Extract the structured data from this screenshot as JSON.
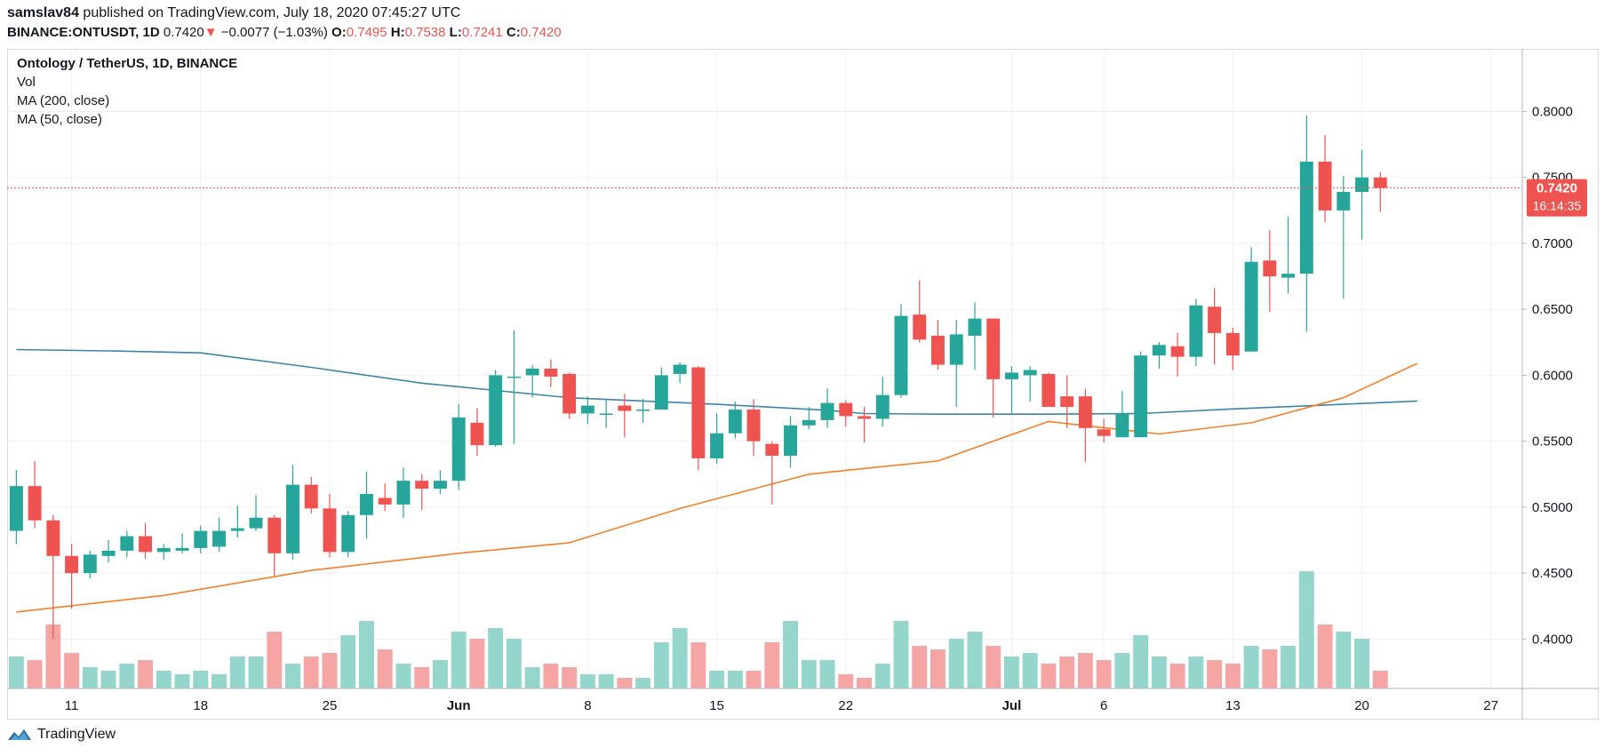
{
  "header": {
    "user": "samslav84",
    "published_text": "published on TradingView.com, July 18, 2020 07:45:27 UTC",
    "symbol": "BINANCE:ONTUSDT, 1D",
    "last_price": "0.7420",
    "change_arrow": "▼",
    "change": "−0.0077 (−1.03%)",
    "o_label": "O:",
    "o_value": "0.7495",
    "h_label": "H:",
    "h_value": "0.7538",
    "l_label": "L:",
    "l_value": "0.7241",
    "c_label": "C:",
    "c_value": "0.7420"
  },
  "legend": {
    "title": "Ontology / TetherUS, 1D, BINANCE",
    "vol": "Vol",
    "ma200": "MA (200, close)",
    "ma50": "MA (50, close)"
  },
  "price_tag": {
    "value": "0.7420",
    "countdown": "16:14:35"
  },
  "footer": {
    "brand": "TradingView"
  },
  "colors": {
    "up": "#26a69a",
    "down": "#ef5350",
    "vol_up": "#94d5cc",
    "vol_down": "#f5a6a4",
    "ma200": "#3d85a8",
    "ma50": "#f57f27",
    "grid": "#eef0f3",
    "axis_text": "#131722"
  },
  "chart_data": {
    "type": "candlestick",
    "title": "Ontology / TetherUS, 1D, BINANCE",
    "y_axis": {
      "range": [
        0.3625,
        0.8475
      ],
      "ticks": [
        "0.4000",
        "0.4500",
        "0.5000",
        "0.5500",
        "0.6000",
        "0.6500",
        "0.7000",
        "0.7500",
        "0.8000"
      ]
    },
    "x_axis": {
      "ticks": [
        {
          "label": "11",
          "index": 3
        },
        {
          "label": "18",
          "index": 10
        },
        {
          "label": "25",
          "index": 17
        },
        {
          "label": "Jun",
          "index": 24
        },
        {
          "label": "8",
          "index": 31
        },
        {
          "label": "15",
          "index": 38
        },
        {
          "label": "22",
          "index": 45
        },
        {
          "label": "Jul",
          "index": 54
        },
        {
          "label": "6",
          "index": 59
        },
        {
          "label": "13",
          "index": 66
        },
        {
          "label": "20",
          "index": 73
        },
        {
          "label": "27",
          "index": 80
        }
      ],
      "index_range": [
        -0.5,
        81.7
      ]
    },
    "volume_range": [
      0,
      0.5
    ],
    "candles": [
      [
        0.482,
        0.528,
        0.472,
        0.516,
        0.09
      ],
      [
        0.516,
        0.535,
        0.484,
        0.49,
        0.08
      ],
      [
        0.49,
        0.494,
        0.4,
        0.463,
        0.18
      ],
      [
        0.463,
        0.472,
        0.423,
        0.45,
        0.1
      ],
      [
        0.45,
        0.467,
        0.446,
        0.464,
        0.06
      ],
      [
        0.463,
        0.475,
        0.458,
        0.467,
        0.05
      ],
      [
        0.467,
        0.482,
        0.462,
        0.478,
        0.07
      ],
      [
        0.478,
        0.488,
        0.461,
        0.466,
        0.08
      ],
      [
        0.466,
        0.472,
        0.46,
        0.469,
        0.05
      ],
      [
        0.467,
        0.48,
        0.465,
        0.469,
        0.04
      ],
      [
        0.469,
        0.486,
        0.465,
        0.482,
        0.05
      ],
      [
        0.47,
        0.492,
        0.466,
        0.482,
        0.04
      ],
      [
        0.482,
        0.501,
        0.477,
        0.484,
        0.09
      ],
      [
        0.484,
        0.509,
        0.482,
        0.492,
        0.09
      ],
      [
        0.492,
        0.494,
        0.448,
        0.465,
        0.16
      ],
      [
        0.465,
        0.532,
        0.46,
        0.517,
        0.07
      ],
      [
        0.517,
        0.523,
        0.495,
        0.499,
        0.09
      ],
      [
        0.499,
        0.51,
        0.462,
        0.466,
        0.1
      ],
      [
        0.466,
        0.497,
        0.462,
        0.494,
        0.15
      ],
      [
        0.494,
        0.527,
        0.476,
        0.51,
        0.19
      ],
      [
        0.507,
        0.518,
        0.497,
        0.502,
        0.11
      ],
      [
        0.502,
        0.53,
        0.492,
        0.52,
        0.07
      ],
      [
        0.52,
        0.525,
        0.498,
        0.514,
        0.06
      ],
      [
        0.514,
        0.528,
        0.51,
        0.52,
        0.08
      ],
      [
        0.52,
        0.578,
        0.513,
        0.568,
        0.16
      ],
      [
        0.564,
        0.575,
        0.539,
        0.547,
        0.14
      ],
      [
        0.547,
        0.604,
        0.546,
        0.6,
        0.17
      ],
      [
        0.599,
        0.634,
        0.548,
        0.599,
        0.14
      ],
      [
        0.6,
        0.608,
        0.583,
        0.605,
        0.06
      ],
      [
        0.605,
        0.612,
        0.591,
        0.599,
        0.07
      ],
      [
        0.601,
        0.602,
        0.567,
        0.571,
        0.06
      ],
      [
        0.571,
        0.584,
        0.563,
        0.577,
        0.04
      ],
      [
        0.571,
        0.581,
        0.56,
        0.571,
        0.04
      ],
      [
        0.577,
        0.586,
        0.553,
        0.573,
        0.03
      ],
      [
        0.573,
        0.582,
        0.564,
        0.574,
        0.03
      ],
      [
        0.574,
        0.606,
        0.574,
        0.6,
        0.13
      ],
      [
        0.601,
        0.61,
        0.594,
        0.608,
        0.17
      ],
      [
        0.606,
        0.607,
        0.528,
        0.537,
        0.13
      ],
      [
        0.537,
        0.571,
        0.533,
        0.556,
        0.05
      ],
      [
        0.556,
        0.58,
        0.552,
        0.574,
        0.05
      ],
      [
        0.574,
        0.582,
        0.539,
        0.55,
        0.05
      ],
      [
        0.548,
        0.55,
        0.502,
        0.539,
        0.13
      ],
      [
        0.539,
        0.569,
        0.53,
        0.562,
        0.19
      ],
      [
        0.562,
        0.576,
        0.559,
        0.566,
        0.08
      ],
      [
        0.566,
        0.59,
        0.56,
        0.579,
        0.08
      ],
      [
        0.579,
        0.581,
        0.561,
        0.569,
        0.04
      ],
      [
        0.569,
        0.576,
        0.549,
        0.567,
        0.03
      ],
      [
        0.567,
        0.599,
        0.561,
        0.585,
        0.07
      ],
      [
        0.585,
        0.654,
        0.583,
        0.645,
        0.19
      ],
      [
        0.646,
        0.672,
        0.625,
        0.627,
        0.12
      ],
      [
        0.63,
        0.642,
        0.604,
        0.608,
        0.11
      ],
      [
        0.608,
        0.642,
        0.576,
        0.631,
        0.14
      ],
      [
        0.63,
        0.655,
        0.604,
        0.643,
        0.16
      ],
      [
        0.643,
        0.643,
        0.568,
        0.597,
        0.12
      ],
      [
        0.597,
        0.607,
        0.57,
        0.602,
        0.09
      ],
      [
        0.6,
        0.607,
        0.58,
        0.604,
        0.1
      ],
      [
        0.601,
        0.602,
        0.576,
        0.576,
        0.07
      ],
      [
        0.584,
        0.6,
        0.56,
        0.576,
        0.09
      ],
      [
        0.584,
        0.59,
        0.534,
        0.56,
        0.1
      ],
      [
        0.559,
        0.567,
        0.549,
        0.554,
        0.08
      ],
      [
        0.553,
        0.588,
        0.554,
        0.571,
        0.1
      ],
      [
        0.553,
        0.618,
        0.557,
        0.615,
        0.15
      ],
      [
        0.615,
        0.625,
        0.605,
        0.623,
        0.09
      ],
      [
        0.622,
        0.632,
        0.599,
        0.614,
        0.07
      ],
      [
        0.614,
        0.658,
        0.607,
        0.653,
        0.09
      ],
      [
        0.652,
        0.666,
        0.608,
        0.632,
        0.08
      ],
      [
        0.632,
        0.636,
        0.604,
        0.615,
        0.07
      ],
      [
        0.618,
        0.697,
        0.618,
        0.686,
        0.12
      ],
      [
        0.687,
        0.71,
        0.648,
        0.675,
        0.11
      ],
      [
        0.674,
        0.72,
        0.662,
        0.677,
        0.12
      ],
      [
        0.677,
        0.797,
        0.633,
        0.762,
        0.33
      ],
      [
        0.762,
        0.782,
        0.716,
        0.725,
        0.18
      ],
      [
        0.725,
        0.751,
        0.658,
        0.739,
        0.16
      ],
      [
        0.739,
        0.771,
        0.703,
        0.75,
        0.14
      ],
      [
        0.75,
        0.754,
        0.724,
        0.742,
        0.05
      ]
    ],
    "candle_fields": [
      "open",
      "high",
      "low",
      "close",
      "volume"
    ],
    "ma200": [
      [
        0,
        0.6195
      ],
      [
        5,
        0.6185
      ],
      [
        10,
        0.617
      ],
      [
        16,
        0.606
      ],
      [
        22,
        0.594
      ],
      [
        30,
        0.583
      ],
      [
        38,
        0.578
      ],
      [
        44,
        0.5735
      ],
      [
        46,
        0.571
      ],
      [
        50,
        0.5705
      ],
      [
        56,
        0.5705
      ],
      [
        61,
        0.571
      ],
      [
        66,
        0.5745
      ],
      [
        72,
        0.578
      ],
      [
        76,
        0.5805
      ]
    ],
    "ma50": [
      [
        0,
        0.4205
      ],
      [
        8,
        0.433
      ],
      [
        16,
        0.452
      ],
      [
        24,
        0.465
      ],
      [
        30,
        0.473
      ],
      [
        36,
        0.499
      ],
      [
        43,
        0.525
      ],
      [
        50,
        0.535
      ],
      [
        56,
        0.565
      ],
      [
        62,
        0.5555
      ],
      [
        67,
        0.564
      ],
      [
        72,
        0.583
      ],
      [
        76,
        0.609
      ]
    ],
    "last_price": 0.742
  }
}
